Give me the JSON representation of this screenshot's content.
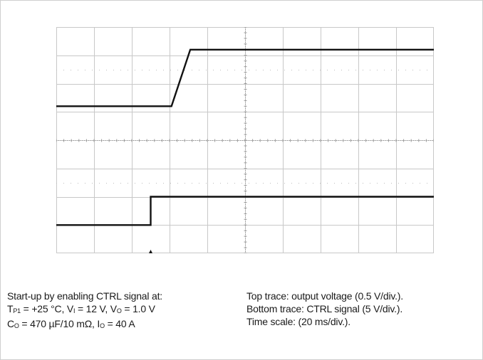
{
  "chart_data": {
    "type": "line",
    "title": "",
    "xlabel": "",
    "ylabel": "",
    "grid": true,
    "divisions": {
      "x": 10,
      "y": 8
    },
    "units": {
      "x": "div",
      "y": "div"
    },
    "xlim": [
      0,
      10
    ],
    "ylim": [
      0,
      8
    ],
    "trigger_marker": {
      "x": 2.5
    },
    "series": [
      {
        "x": [
          0,
          3.05,
          3.55,
          10
        ],
        "y": [
          5.2,
          5.2,
          7.2,
          7.2
        ]
      },
      {
        "x": [
          0,
          2.5,
          2.5,
          10
        ],
        "y": [
          1.0,
          1.0,
          2.0,
          2.0
        ]
      }
    ]
  },
  "caption_left": {
    "line1": "Start-up by enabling CTRL signal at:",
    "line2": {
      "t_prefix": "T",
      "t_sub": "P1",
      "t_rest": " = +25 °C, V",
      "vi_sub": "I",
      "vi_rest": " = 12 V, V",
      "vo_sub": "O",
      "vo_rest": " = 1.0 V"
    },
    "line3": {
      "c_prefix": "C",
      "c_sub": "O",
      "c_rest": " = 470 µF/10 mΩ, I",
      "io_sub": "O",
      "io_rest": " = 40 A"
    }
  },
  "caption_right": {
    "line1": "Top trace: output voltage (0.5 V/div.).",
    "line2": "Bottom trace:  CTRL signal (5 V/div.).",
    "line3": "Time scale: (20 ms/div.)."
  },
  "colors": {
    "trace": "#111111",
    "grid": "#c8c8c8",
    "axis": "#9a9a9a",
    "dots": "#bdbdbd"
  }
}
